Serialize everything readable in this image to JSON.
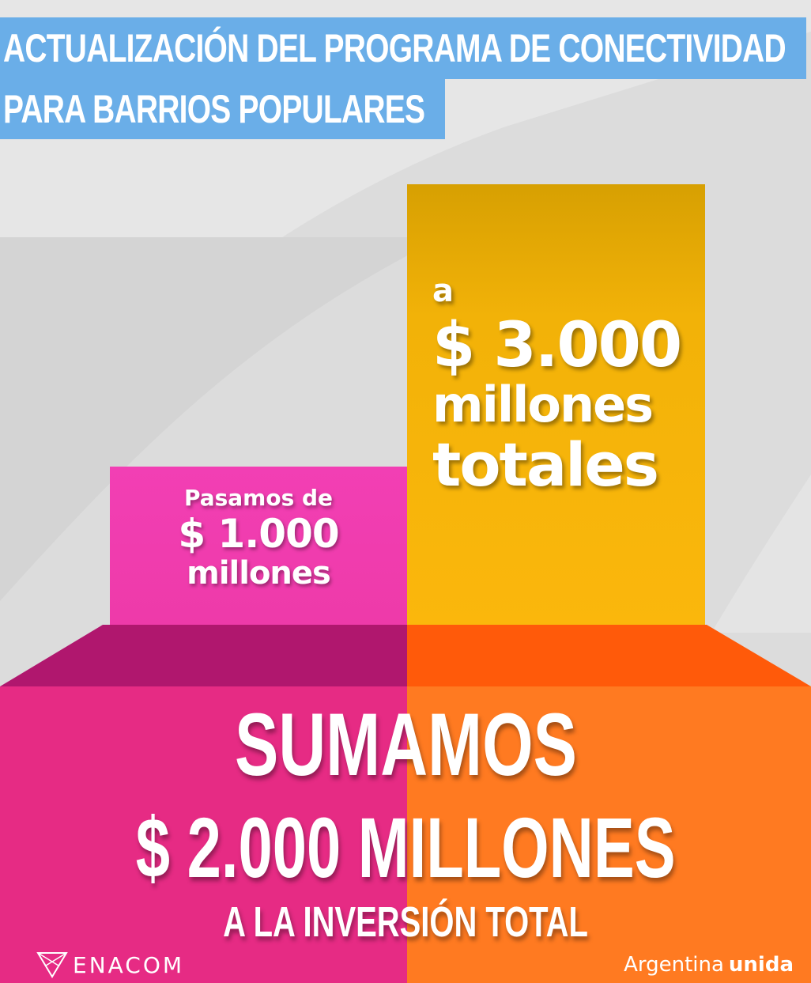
{
  "title": {
    "line1": "ACTUALIZACIÓN DEL PROGRAMA DE CONECTIVIDAD",
    "line2": "PARA BARRIOS POPULARES"
  },
  "bar_small": {
    "line1": "Pasamos de",
    "line2": "$ 1.000",
    "line3": "millones"
  },
  "bar_tall": {
    "line1": "a",
    "line2": "$ 3.000",
    "line3": "millones",
    "line4": "totales"
  },
  "base": {
    "line1": "SUMAMOS",
    "line2": "$ 2.000 MILLONES",
    "line3": "A LA INVERSIÓN TOTAL"
  },
  "footer": {
    "left_logo": "ENACOM",
    "right_logo_regular": "Argentina",
    "right_logo_bold": "unida"
  },
  "colors": {
    "title_bg": "#6aaee8",
    "pink": "#ee3aa9",
    "yellow": "#fbb70c",
    "orange": "#ff7a21",
    "magenta": "#e62b84"
  }
}
